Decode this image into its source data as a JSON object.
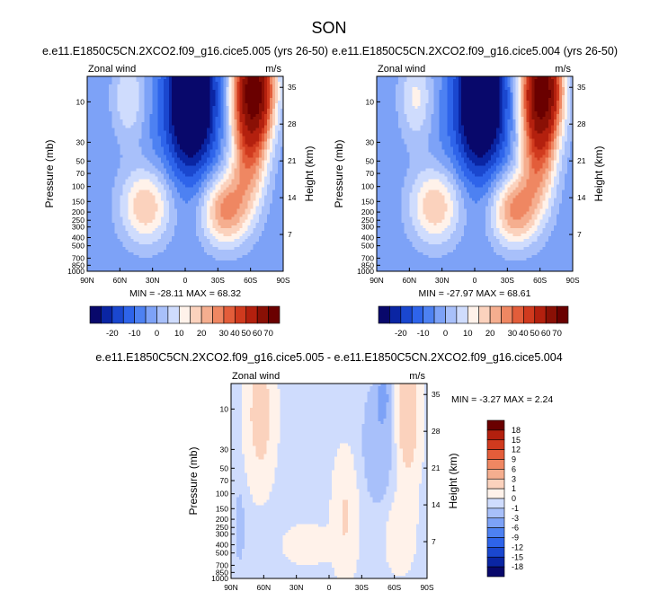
{
  "title": "SON",
  "colors": {
    "cmap_mean": [
      "#08086b",
      "#0a25a3",
      "#1a47cf",
      "#2e64ea",
      "#4d81f2",
      "#7da2f7",
      "#a8c0fa",
      "#cfdcfd",
      "#fff2ea",
      "#fbd2bd",
      "#f5ae8f",
      "#ef8762",
      "#e35d3a",
      "#d03a1e",
      "#b3200e",
      "#8a1005",
      "#6a0000"
    ],
    "cmap_diff": [
      "#08086b",
      "#0a25a3",
      "#1a47cf",
      "#2e64ea",
      "#4d81f2",
      "#7da2f7",
      "#a8c0fa",
      "#cfdcfd",
      "#fff2ea",
      "#fbd2bd",
      "#f5ae8f",
      "#ef8762",
      "#e35d3a",
      "#d03a1e",
      "#b3200e",
      "#6a0000"
    ]
  },
  "chart_data": [
    {
      "type": "contour",
      "id": "p1",
      "title": "e.e11.E1850C5CN.2XCO2.f09_g16.cice5.005 (yrs 26-50)",
      "left_label": "Zonal wind",
      "right_label": "m/s",
      "xlabel": "",
      "ylabel": "Pressure (mb)",
      "ylabel_right": "Height (km)",
      "x_ticks": [
        "90N",
        "60N",
        "30N",
        "0",
        "30S",
        "60S",
        "90S"
      ],
      "x_range": [
        90,
        -90
      ],
      "p_ticks": [
        10,
        30,
        50,
        70,
        100,
        150,
        200,
        250,
        300,
        400,
        500,
        700,
        850,
        1000
      ],
      "p_range": [
        1000,
        5
      ],
      "h_ticks": [
        7,
        14,
        21,
        28,
        35
      ],
      "min_max": "MIN = -28.11   MAX = 68.32",
      "min": -28.11,
      "max": 68.32,
      "levels": [
        -25,
        -20,
        -15,
        -10,
        -5,
        0,
        5,
        10,
        15,
        20,
        25,
        30,
        35,
        40,
        50,
        60,
        70
      ],
      "colorbar_labels": [
        "-20",
        "-10",
        "0",
        "10",
        "20",
        "30",
        "40",
        "50",
        "60",
        "70"
      ],
      "colorbar_label_indices": [
        2,
        4,
        6,
        8,
        10,
        12,
        13,
        14,
        15,
        16
      ],
      "features": [
        {
          "lat": 36,
          "p": 170,
          "amp": 24,
          "slat": 17,
          "slogp": 0.32
        },
        {
          "lat": 52,
          "p": 9,
          "amp": 14,
          "slat": 11,
          "slogp": 0.38
        },
        {
          "lat": -36,
          "p": 190,
          "amp": 30,
          "slat": 15,
          "slogp": 0.3
        },
        {
          "lat": -63,
          "p": 7,
          "amp": 70,
          "slat": 13,
          "slogp": 0.45
        },
        {
          "lat": -58,
          "p": 50,
          "amp": 25,
          "slat": 12,
          "slogp": 0.45
        },
        {
          "lat": -6,
          "p": 7,
          "amp": -38,
          "slat": 15,
          "slogp": 0.55
        },
        {
          "lat": -3,
          "p": 30,
          "amp": -9,
          "slat": 20,
          "slogp": 0.5
        }
      ],
      "base": -4
    },
    {
      "type": "contour",
      "id": "p2",
      "title": "e.e11.E1850C5CN.2XCO2.f09_g16.cice5.004 (yrs 26-50)",
      "left_label": "Zonal wind",
      "right_label": "m/s",
      "xlabel": "",
      "ylabel": "Pressure (mb)",
      "ylabel_right": "Height (km)",
      "x_ticks": [
        "90N",
        "60N",
        "30N",
        "0",
        "30S",
        "60S",
        "90S"
      ],
      "x_range": [
        90,
        -90
      ],
      "p_ticks": [
        10,
        30,
        50,
        70,
        100,
        150,
        200,
        250,
        300,
        400,
        500,
        700,
        850,
        1000
      ],
      "p_range": [
        1000,
        5
      ],
      "h_ticks": [
        7,
        14,
        21,
        28,
        35
      ],
      "min_max": "MIN = -27.97   MAX = 68.61",
      "min": -27.97,
      "max": 68.61,
      "levels": [
        -25,
        -20,
        -15,
        -10,
        -5,
        0,
        5,
        10,
        15,
        20,
        25,
        30,
        35,
        40,
        50,
        60,
        70
      ],
      "colorbar_labels": [
        "-20",
        "-10",
        "0",
        "10",
        "20",
        "30",
        "40",
        "50",
        "60",
        "70"
      ],
      "colorbar_label_indices": [
        2,
        4,
        6,
        8,
        10,
        12,
        13,
        14,
        15,
        16
      ],
      "features": [
        {
          "lat": 36,
          "p": 170,
          "amp": 24,
          "slat": 17,
          "slogp": 0.32
        },
        {
          "lat": 54,
          "p": 9,
          "amp": 15,
          "slat": 11,
          "slogp": 0.38
        },
        {
          "lat": -36,
          "p": 190,
          "amp": 30,
          "slat": 15,
          "slogp": 0.3
        },
        {
          "lat": -62,
          "p": 7,
          "amp": 70,
          "slat": 13,
          "slogp": 0.45
        },
        {
          "lat": -58,
          "p": 50,
          "amp": 26,
          "slat": 12,
          "slogp": 0.45
        },
        {
          "lat": -6,
          "p": 7,
          "amp": -38,
          "slat": 15,
          "slogp": 0.55
        },
        {
          "lat": -3,
          "p": 30,
          "amp": -9,
          "slat": 20,
          "slogp": 0.5
        }
      ],
      "base": -4
    },
    {
      "type": "contour",
      "id": "p3",
      "title": "e.e11.E1850C5CN.2XCO2.f09_g16.cice5.005 - e.e11.E1850C5CN.2XCO2.f09_g16.cice5.004",
      "left_label": "Zonal wind",
      "right_label": "m/s",
      "xlabel": "",
      "ylabel": "Pressure (mb)",
      "ylabel_right": "Height (km)",
      "x_ticks": [
        "90N",
        "60N",
        "30N",
        "0",
        "30S",
        "60S",
        "90S"
      ],
      "x_range": [
        90,
        -90
      ],
      "p_ticks": [
        10,
        30,
        50,
        70,
        100,
        150,
        200,
        250,
        300,
        400,
        500,
        700,
        850,
        1000
      ],
      "p_range": [
        1000,
        5
      ],
      "h_ticks": [
        7,
        14,
        21,
        28,
        35
      ],
      "min_max": "MIN = -3.27   MAX =   2.24",
      "min": -3.27,
      "max": 2.24,
      "levels": [
        -18,
        -15,
        -12,
        -9,
        -6,
        -3,
        -1,
        0,
        1,
        3,
        6,
        9,
        12,
        15,
        18
      ],
      "colorbar_labels": [
        "18",
        "15",
        "12",
        "9",
        "6",
        "3",
        "1",
        "0",
        "-1",
        "-3",
        "-6",
        "-9",
        "-12",
        "-15",
        "-18"
      ],
      "features": [
        {
          "lat": 63,
          "p": 12,
          "amp": 2.0,
          "slat": 9,
          "slogp": 0.55
        },
        {
          "lat": -72,
          "p": 12,
          "amp": 2.4,
          "slat": 8,
          "slogp": 0.55
        },
        {
          "lat": -45,
          "p": 25,
          "amp": -2.6,
          "slat": 9,
          "slogp": 0.45
        },
        {
          "lat": -50,
          "p": 7,
          "amp": -3.3,
          "slat": 4,
          "slogp": 0.18
        },
        {
          "lat": 82,
          "p": 250,
          "amp": -1.9,
          "slat": 3,
          "slogp": 0.28
        },
        {
          "lat": -15,
          "p": 180,
          "amp": 1.4,
          "slat": 8,
          "slogp": 0.5
        },
        {
          "lat": 20,
          "p": 400,
          "amp": 1.2,
          "slat": 14,
          "slogp": 0.15
        },
        {
          "lat": -65,
          "p": 300,
          "amp": 1.2,
          "slat": 9,
          "slogp": 0.3
        }
      ],
      "base": -0.3
    }
  ]
}
